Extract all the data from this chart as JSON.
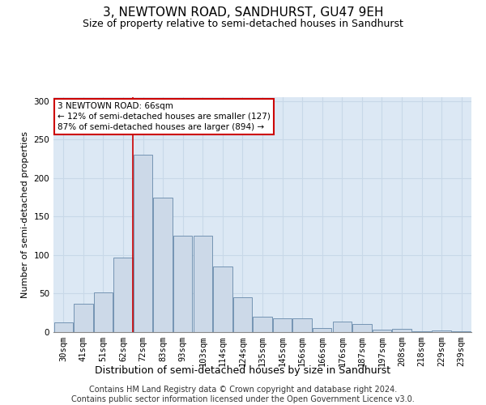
{
  "title1": "3, NEWTOWN ROAD, SANDHURST, GU47 9EH",
  "title2": "Size of property relative to semi-detached houses in Sandhurst",
  "xlabel": "Distribution of semi-detached houses by size in Sandhurst",
  "ylabel": "Number of semi-detached properties",
  "categories": [
    "30sqm",
    "41sqm",
    "51sqm",
    "62sqm",
    "72sqm",
    "83sqm",
    "93sqm",
    "103sqm",
    "114sqm",
    "124sqm",
    "135sqm",
    "145sqm",
    "156sqm",
    "166sqm",
    "176sqm",
    "187sqm",
    "197sqm",
    "208sqm",
    "218sqm",
    "229sqm",
    "239sqm"
  ],
  "values": [
    13,
    37,
    52,
    97,
    230,
    175,
    125,
    125,
    85,
    45,
    20,
    18,
    18,
    5,
    14,
    10,
    3,
    4,
    1,
    2,
    1
  ],
  "bar_color": "#ccd9e8",
  "bar_edge_color": "#6688aa",
  "annotation_text": "3 NEWTOWN ROAD: 66sqm\n← 12% of semi-detached houses are smaller (127)\n87% of semi-detached houses are larger (894) →",
  "annotation_box_color": "#ffffff",
  "annotation_box_edge": "#cc0000",
  "vline_color": "#cc0000",
  "vline_x": 3.5,
  "ylim": [
    0,
    305
  ],
  "yticks": [
    0,
    50,
    100,
    150,
    200,
    250,
    300
  ],
  "grid_color": "#c8d8e8",
  "background_color": "#dce8f4",
  "footer_text": "Contains HM Land Registry data © Crown copyright and database right 2024.\nContains public sector information licensed under the Open Government Licence v3.0.",
  "title1_fontsize": 11,
  "title2_fontsize": 9,
  "xlabel_fontsize": 9,
  "ylabel_fontsize": 8,
  "tick_fontsize": 7.5,
  "footer_fontsize": 7
}
